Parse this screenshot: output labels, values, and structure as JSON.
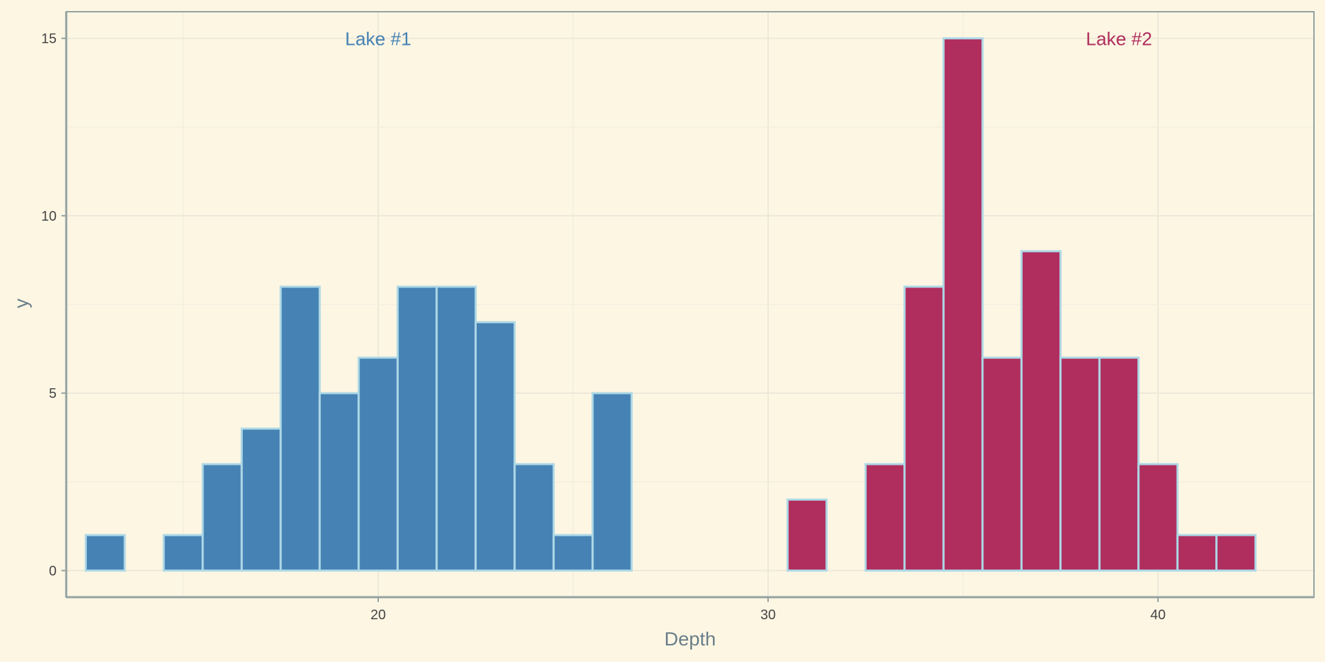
{
  "chart_data": {
    "type": "bar",
    "subtype": "histogram",
    "title": "",
    "xlabel": "Depth",
    "ylabel": "y",
    "xlim": [
      12.0,
      44.0
    ],
    "ylim": [
      -0.75,
      15.75
    ],
    "bin_width": 1,
    "x_ticks": [
      20,
      30,
      40
    ],
    "y_ticks": [
      0,
      5,
      10,
      15
    ],
    "grid": true,
    "series": [
      {
        "name": "Lake #1",
        "color": "#4682b4",
        "bins": [
          {
            "start": 12.5,
            "end": 13.5,
            "count": 1
          },
          {
            "start": 13.5,
            "end": 14.5,
            "count": 0
          },
          {
            "start": 14.5,
            "end": 15.5,
            "count": 1
          },
          {
            "start": 15.5,
            "end": 16.5,
            "count": 3
          },
          {
            "start": 16.5,
            "end": 17.5,
            "count": 4
          },
          {
            "start": 17.5,
            "end": 18.5,
            "count": 8
          },
          {
            "start": 18.5,
            "end": 19.5,
            "count": 5
          },
          {
            "start": 19.5,
            "end": 20.5,
            "count": 6
          },
          {
            "start": 20.5,
            "end": 21.5,
            "count": 8
          },
          {
            "start": 21.5,
            "end": 22.5,
            "count": 8
          },
          {
            "start": 22.5,
            "end": 23.5,
            "count": 7
          },
          {
            "start": 23.5,
            "end": 24.5,
            "count": 3
          },
          {
            "start": 24.5,
            "end": 25.5,
            "count": 1
          },
          {
            "start": 25.5,
            "end": 26.5,
            "count": 5
          },
          {
            "start": 26.5,
            "end": 27.5,
            "count": 0
          },
          {
            "start": 27.5,
            "end": 28.5,
            "count": 0
          },
          {
            "start": 28.5,
            "end": 29.5,
            "count": 0
          },
          {
            "start": 29.5,
            "end": 30.5,
            "count": 0
          }
        ]
      },
      {
        "name": "Lake #2",
        "color": "#b02e5e",
        "bins": [
          {
            "start": 30.5,
            "end": 31.5,
            "count": 2
          },
          {
            "start": 31.5,
            "end": 32.5,
            "count": 0
          },
          {
            "start": 32.5,
            "end": 33.5,
            "count": 3
          },
          {
            "start": 33.5,
            "end": 34.5,
            "count": 8
          },
          {
            "start": 34.5,
            "end": 35.5,
            "count": 15
          },
          {
            "start": 35.5,
            "end": 36.5,
            "count": 6
          },
          {
            "start": 36.5,
            "end": 37.5,
            "count": 9
          },
          {
            "start": 37.5,
            "end": 38.5,
            "count": 6
          },
          {
            "start": 38.5,
            "end": 39.5,
            "count": 6
          },
          {
            "start": 39.5,
            "end": 40.5,
            "count": 3
          },
          {
            "start": 40.5,
            "end": 41.5,
            "count": 1
          },
          {
            "start": 41.5,
            "end": 42.5,
            "count": 1
          }
        ]
      }
    ],
    "annotations": [
      {
        "text": "Lake #1",
        "x": 20,
        "y": 15,
        "color": "#4682b4"
      },
      {
        "text": "Lake #2",
        "x": 39,
        "y": 15,
        "color": "#b02e5e"
      }
    ]
  }
}
